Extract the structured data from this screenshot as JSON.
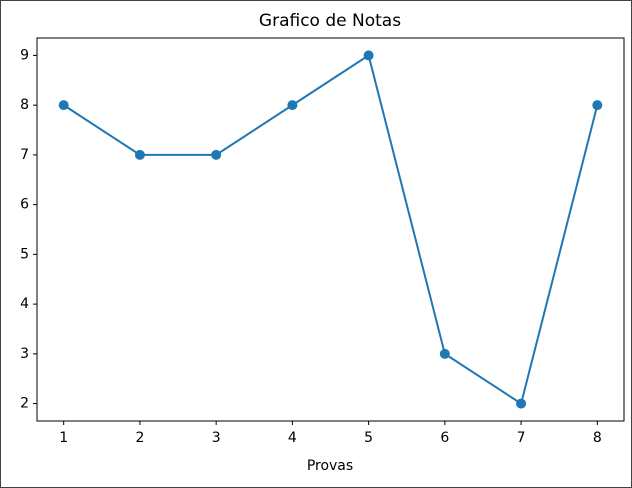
{
  "chart_data": {
    "type": "line",
    "title": "Grafico de Notas",
    "x_label": "Provas",
    "x": [
      1,
      2,
      3,
      4,
      5,
      6,
      7,
      8
    ],
    "series": [
      {
        "color": "#1f77b4",
        "values": [
          8,
          7,
          7,
          8,
          9,
          3,
          2,
          8
        ]
      }
    ],
    "xlim": [
      0.65,
      8.35
    ],
    "xticks": [
      1,
      2,
      3,
      4,
      5,
      6,
      7,
      8
    ],
    "ylim": [
      1.65,
      9.35
    ],
    "yticks": [
      2,
      3,
      4,
      5,
      6,
      7,
      8,
      9
    ],
    "markers": true,
    "grid": false
  }
}
